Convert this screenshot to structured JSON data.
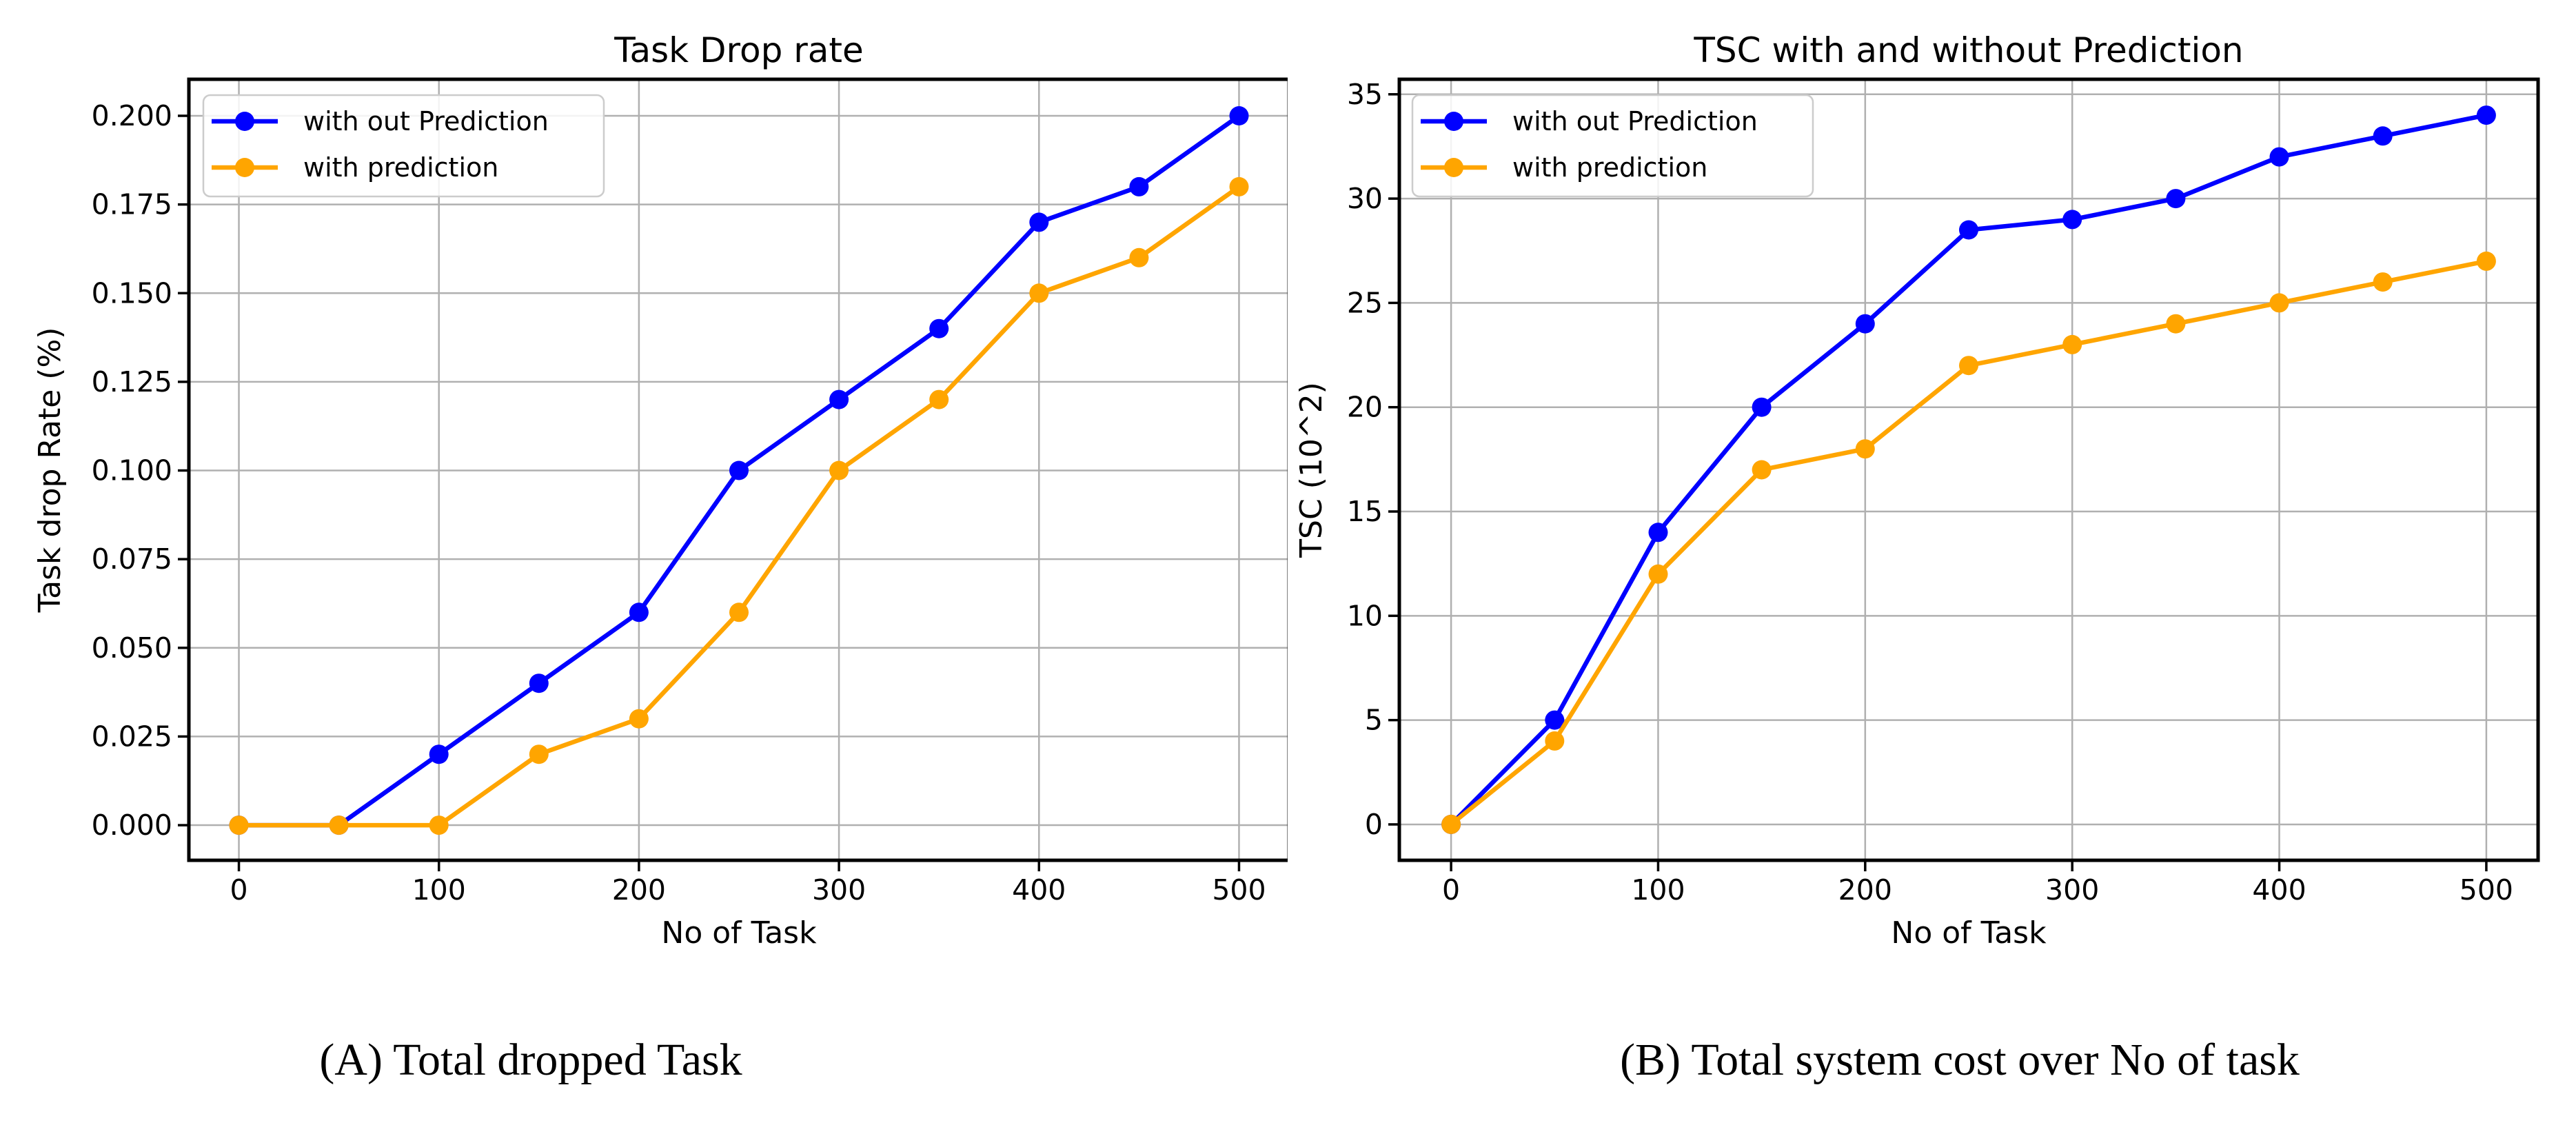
{
  "page": {
    "background": "#ffffff"
  },
  "colors": {
    "series_without": "#0000ff",
    "series_with": "#ffa500",
    "grid": "#b0b0b0",
    "spine": "#000000",
    "legend_border": "#cccccc",
    "legend_fill": "rgba(255,255,255,0.85)"
  },
  "chart_data": [
    {
      "id": "task-drop-rate",
      "type": "line",
      "title": "Task Drop rate",
      "xlabel": "No of Task",
      "ylabel": "Task drop Rate (%)",
      "caption": "(A) Total dropped Task",
      "legend_position": "upper left",
      "grid": true,
      "x": [
        0,
        50,
        100,
        150,
        200,
        250,
        300,
        350,
        400,
        450,
        500
      ],
      "series": [
        {
          "name": "with out Prediction",
          "color": "#0000ff",
          "values": [
            0.0,
            0.0,
            0.02,
            0.04,
            0.06,
            0.1,
            0.12,
            0.14,
            0.17,
            0.18,
            0.2
          ]
        },
        {
          "name": "with prediction",
          "color": "#ffa500",
          "values": [
            0.0,
            0.0,
            0.0,
            0.02,
            0.03,
            0.06,
            0.1,
            0.12,
            0.15,
            0.16,
            0.18
          ]
        }
      ],
      "xlim": [
        -25,
        525
      ],
      "ylim": [
        -0.0099,
        0.2103
      ],
      "xticks": {
        "values": [
          0,
          100,
          200,
          300,
          400,
          500
        ],
        "labels": [
          "0",
          "100",
          "200",
          "300",
          "400",
          "500"
        ]
      },
      "yticks": {
        "values": [
          0.0,
          0.025,
          0.05,
          0.075,
          0.1,
          0.125,
          0.15,
          0.175,
          0.2
        ],
        "labels": [
          "0.000",
          "0.025",
          "0.050",
          "0.075",
          "0.100",
          "0.125",
          "0.150",
          "0.175",
          "0.200"
        ]
      }
    },
    {
      "id": "tsc-prediction",
      "type": "line",
      "title": "TSC with and without Prediction",
      "xlabel": "No of Task",
      "ylabel": "TSC (10^2)",
      "caption": "(B) Total system cost over No of task",
      "legend_position": "upper left",
      "grid": true,
      "x": [
        0,
        50,
        100,
        150,
        200,
        250,
        300,
        350,
        400,
        450,
        500
      ],
      "series": [
        {
          "name": "with out Prediction",
          "color": "#0000ff",
          "values": [
            0,
            5,
            14,
            20,
            24,
            28.5,
            29,
            30,
            32,
            33,
            34
          ]
        },
        {
          "name": "with prediction",
          "color": "#ffa500",
          "values": [
            0,
            4,
            12,
            17,
            18,
            22,
            23,
            24,
            25,
            26,
            27
          ]
        }
      ],
      "xlim": [
        -25,
        525
      ],
      "ylim": [
        -1.72,
        35.72
      ],
      "xticks": {
        "values": [
          0,
          100,
          200,
          300,
          400,
          500
        ],
        "labels": [
          "0",
          "100",
          "200",
          "300",
          "400",
          "500"
        ]
      },
      "yticks": {
        "values": [
          0,
          5,
          10,
          15,
          20,
          25,
          30,
          35
        ],
        "labels": [
          "0",
          "5",
          "10",
          "15",
          "20",
          "25",
          "30",
          "35"
        ]
      }
    }
  ]
}
